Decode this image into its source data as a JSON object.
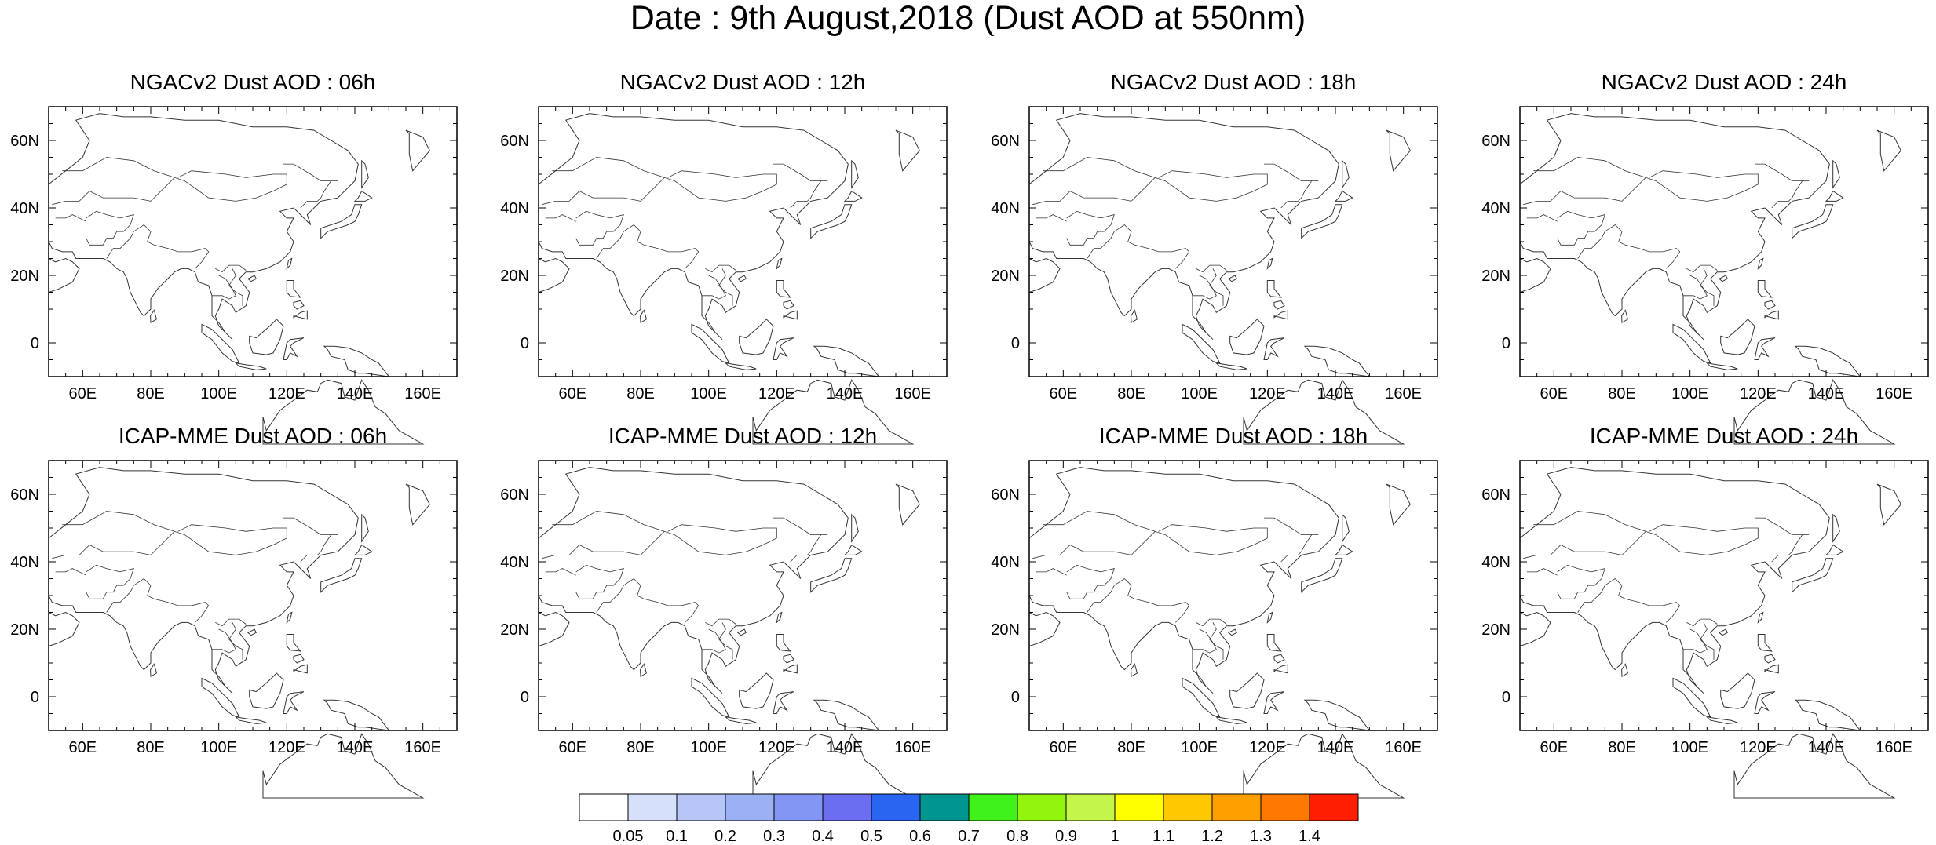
{
  "title": "Date : 9th August,2018 (Dust AOD at 550nm)",
  "map": {
    "lon_range": [
      50,
      170
    ],
    "lat_range": [
      -10,
      70
    ],
    "lon_ticks": [
      "60E",
      "80E",
      "100E",
      "120E",
      "140E",
      "160E"
    ],
    "lat_ticks": [
      "0",
      "20N",
      "40N",
      "60N"
    ]
  },
  "panels": [
    {
      "title": "NGACv2 Dust AOD : 06h",
      "model": "NGACv2",
      "hour": "06h"
    },
    {
      "title": "NGACv2 Dust AOD : 12h",
      "model": "NGACv2",
      "hour": "12h"
    },
    {
      "title": "NGACv2 Dust AOD : 18h",
      "model": "NGACv2",
      "hour": "18h"
    },
    {
      "title": "NGACv2 Dust AOD : 24h",
      "model": "NGACv2",
      "hour": "24h"
    },
    {
      "title": "ICAP-MME Dust AOD : 06h",
      "model": "ICAP-MME",
      "hour": "06h"
    },
    {
      "title": "ICAP-MME Dust AOD : 12h",
      "model": "ICAP-MME",
      "hour": "12h"
    },
    {
      "title": "ICAP-MME Dust AOD : 18h",
      "model": "ICAP-MME",
      "hour": "18h"
    },
    {
      "title": "ICAP-MME Dust AOD : 24h",
      "model": "ICAP-MME",
      "hour": "24h"
    }
  ],
  "colorbar": {
    "labels": [
      "0.05",
      "0.1",
      "0.2",
      "0.3",
      "0.4",
      "0.5",
      "0.6",
      "0.7",
      "0.8",
      "0.9",
      "1",
      "1.1",
      "1.2",
      "1.3",
      "1.4"
    ],
    "colors": [
      "#ffffff",
      "#d6e0fb",
      "#b7c6f7",
      "#9cb0f4",
      "#8396f4",
      "#6b6ef0",
      "#2a65f2",
      "#00968f",
      "#3ff219",
      "#93f50e",
      "#c3f648",
      "#ffff00",
      "#ffc800",
      "#ffa000",
      "#ff7800",
      "#ff1e00"
    ]
  }
}
